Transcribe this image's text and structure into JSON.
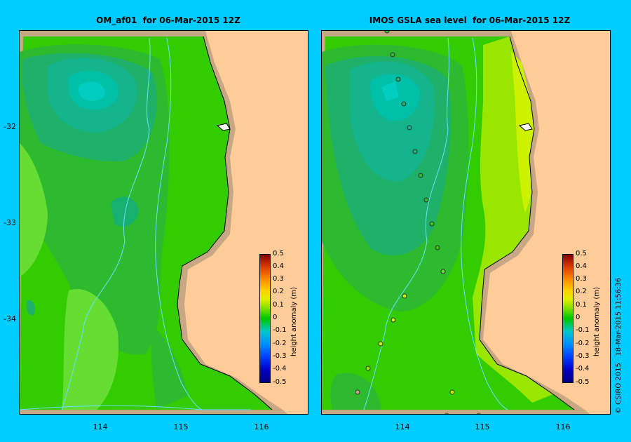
{
  "panels": {
    "left_title": "OM_af01  for 06-Mar-2015 12Z",
    "right_title": "IMOS GSLA sea level  for 06-Mar-2015 12Z"
  },
  "axes": {
    "y_ticks": [
      "-32",
      "-33",
      "-34"
    ],
    "x_ticks": [
      "114",
      "115",
      "116"
    ]
  },
  "colorbar": {
    "label": "height anomaly (m)",
    "ticks": [
      "0.5",
      "0.4",
      "0.3",
      "0.2",
      "0.1",
      "0",
      "-0.1",
      "-0.2",
      "-0.3",
      "-0.4",
      "-0.5"
    ]
  },
  "footer": {
    "stamp": "© CSIRO 2015   18-Mar-2015 11:56:36"
  },
  "colors": {
    "background": "#00ccff",
    "land": "#ffcc99",
    "shelf": "#c8a884",
    "contour_line": "#66e0ff"
  }
}
